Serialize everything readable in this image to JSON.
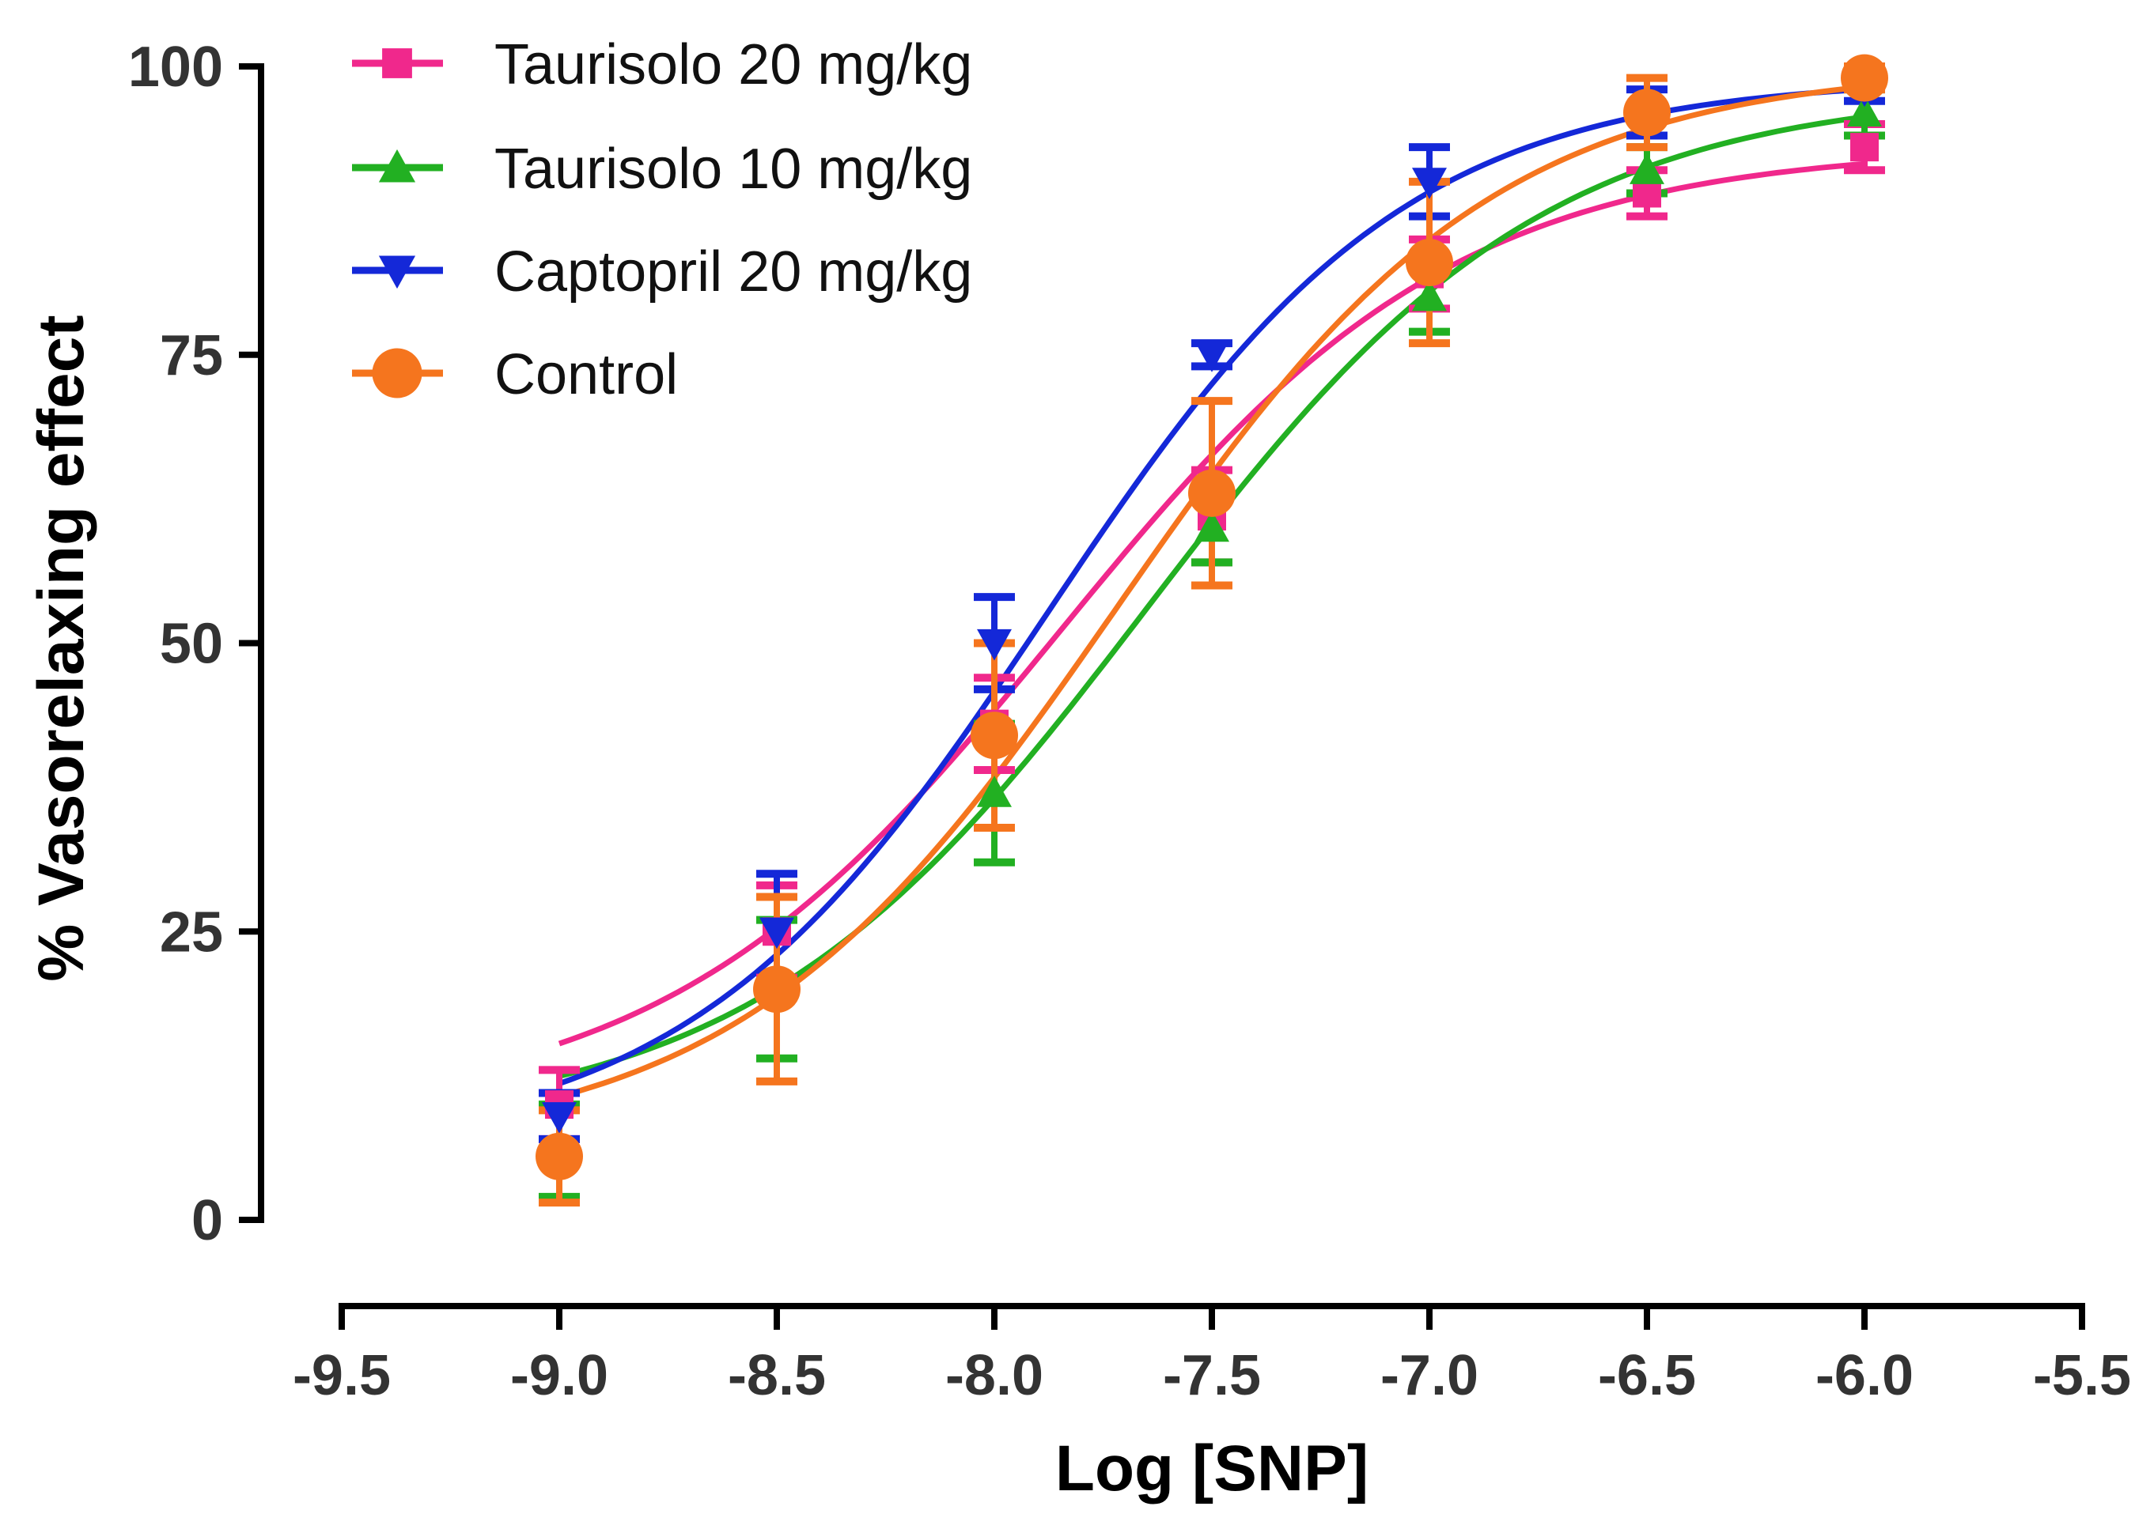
{
  "chart_data": {
    "type": "line",
    "title": "",
    "xlabel": "Log [SNP]",
    "ylabel": "% Vasorelaxing effect",
    "xlim": [
      -9.5,
      -5.5
    ],
    "ylim": [
      0,
      100
    ],
    "x_ticks": [
      "-9.5",
      "-9.0",
      "-8.5",
      "-8.0",
      "-7.5",
      "-7.0",
      "-6.5",
      "-6.0",
      "-5.5"
    ],
    "y_ticks": [
      "0",
      "25",
      "50",
      "75",
      "100"
    ],
    "legend_position": "top-left",
    "x": [
      -9.0,
      -8.5,
      -8.0,
      -7.5,
      -7.0,
      -6.5,
      -6.0
    ],
    "series": [
      {
        "name": "Taurisolo 20 mg/kg",
        "color": "#f0288c",
        "marker": "square",
        "values": [
          10,
          25,
          43,
          61,
          82,
          89,
          93
        ],
        "errors": [
          3,
          4,
          4,
          4,
          3,
          2,
          2
        ],
        "fit": {
          "bottom": 9,
          "top": 93,
          "logEC50": -7.85,
          "hill": 0.95
        }
      },
      {
        "name": "Taurisolo 10 mg/kg",
        "color": "#22b022",
        "marker": "triangle-up",
        "values": [
          6,
          20,
          37,
          60,
          80,
          91,
          96
        ],
        "errors": [
          4,
          6,
          6,
          3,
          3,
          2,
          2
        ],
        "fit": {
          "bottom": 8,
          "top": 98,
          "logEC50": -7.65,
          "hill": 0.95
        }
      },
      {
        "name": "Captopril 20 mg/kg",
        "color": "#1428d8",
        "marker": "triangle-down",
        "values": [
          9,
          25,
          50,
          75,
          90,
          96,
          98
        ],
        "errors": [
          2,
          5,
          4,
          1,
          3,
          2,
          1
        ],
        "fit": {
          "bottom": 6,
          "top": 99,
          "logEC50": -7.88,
          "hill": 1.05
        }
      },
      {
        "name": "Control",
        "color": "#f5751e",
        "marker": "circle",
        "values": [
          5.5,
          20,
          42,
          63,
          83,
          96,
          99
        ],
        "errors": [
          4,
          8,
          8,
          8,
          7,
          3,
          1
        ],
        "fit": {
          "bottom": 6,
          "top": 100,
          "logEC50": -7.72,
          "hill": 1.0
        }
      }
    ]
  }
}
